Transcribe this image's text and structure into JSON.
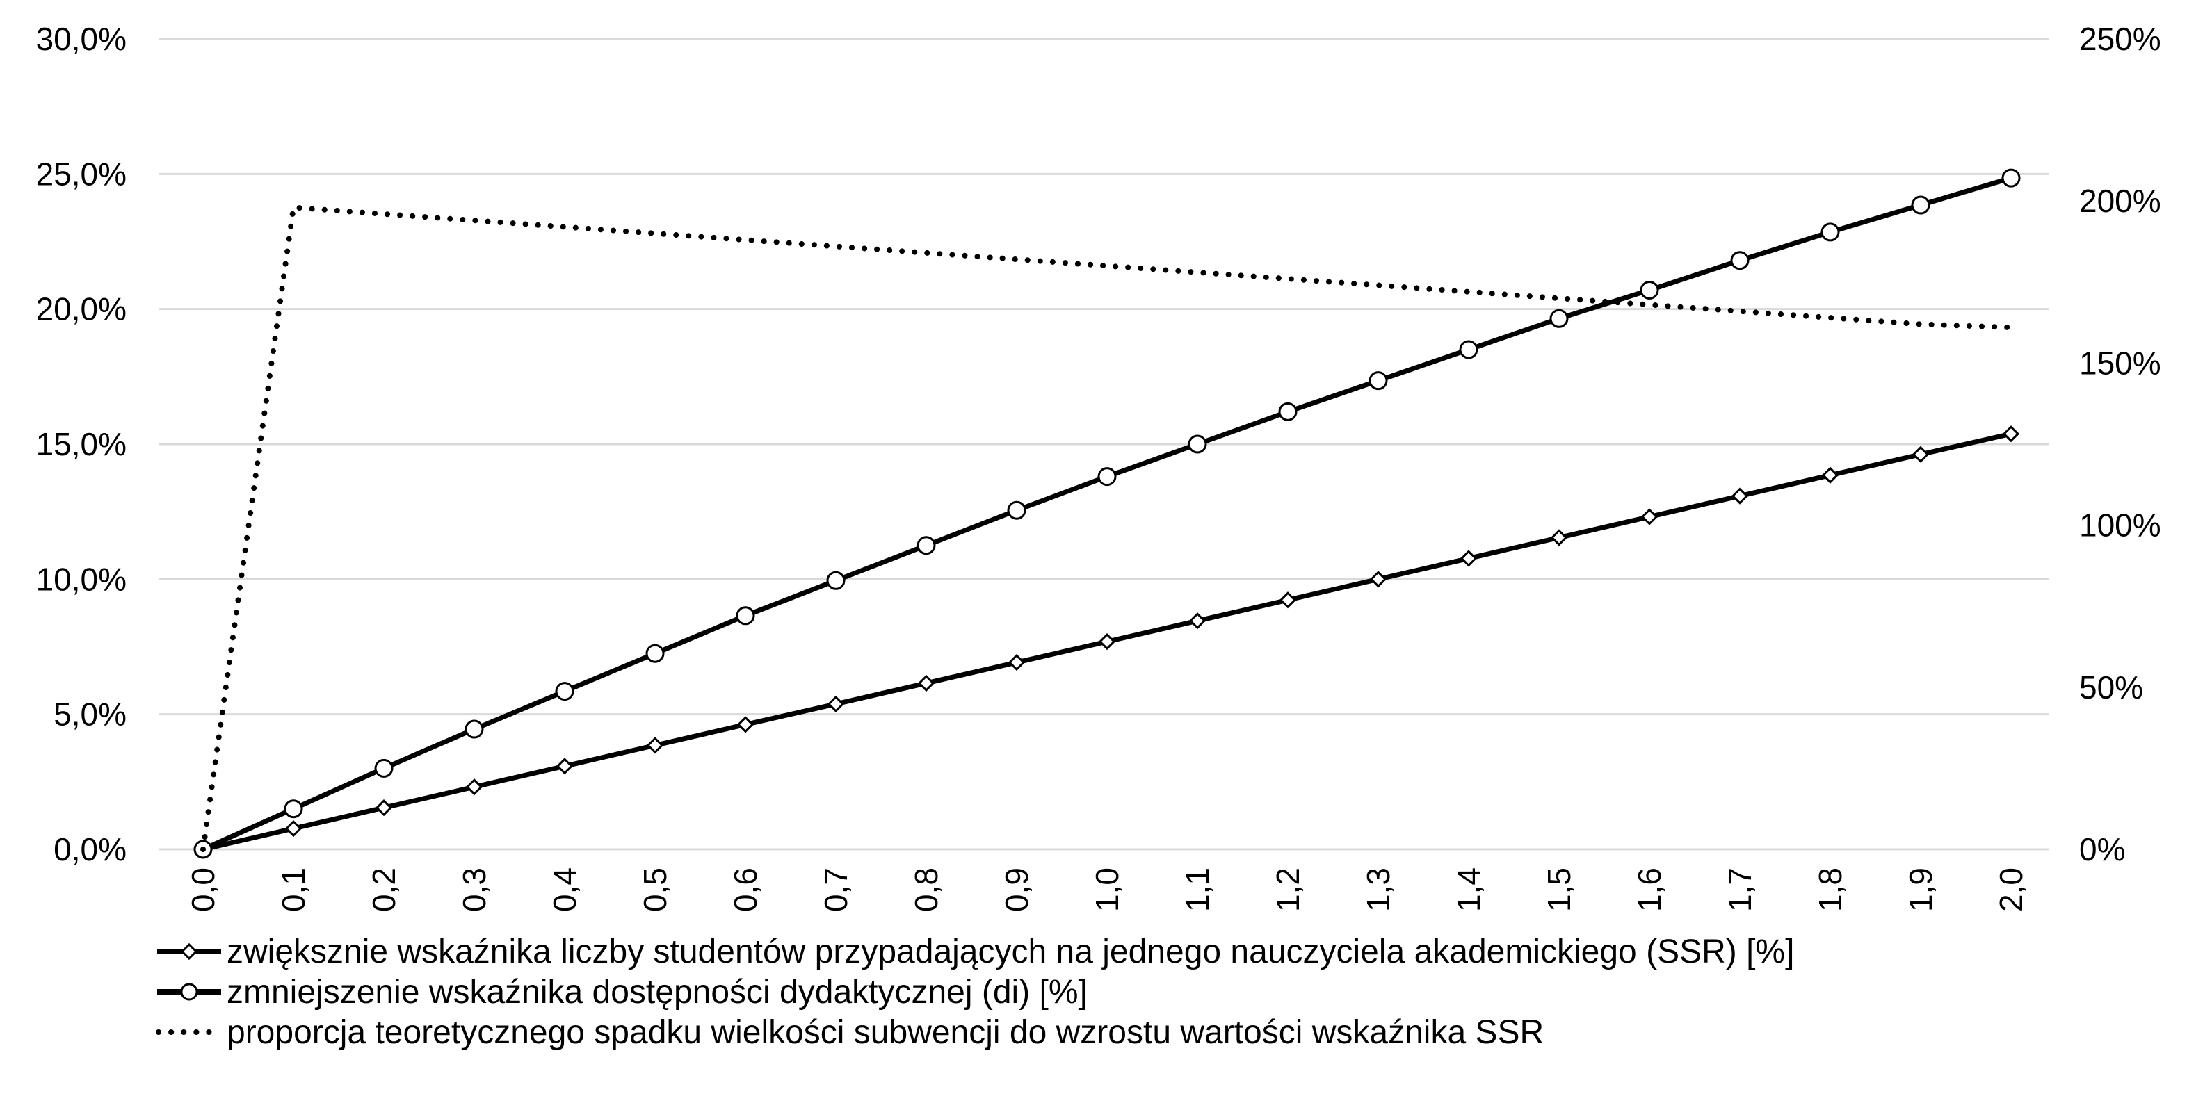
{
  "chart_data": {
    "type": "line",
    "x": [
      "0,0",
      "0,1",
      "0,2",
      "0,3",
      "0,4",
      "0,5",
      "0,6",
      "0,7",
      "0,8",
      "0,9",
      "1,0",
      "1,1",
      "1,2",
      "1,3",
      "1,4",
      "1,5",
      "1,6",
      "1,7",
      "1,8",
      "1,9",
      "2,0"
    ],
    "y_left": {
      "ticks": [
        "0,0%",
        "5,0%",
        "10,0%",
        "15,0%",
        "20,0%",
        "25,0%",
        "30,0%"
      ],
      "ylim": [
        0,
        30
      ]
    },
    "y_right": {
      "ticks": [
        "0%",
        "50%",
        "100%",
        "150%",
        "200%",
        "250%"
      ],
      "ylim": [
        0,
        250
      ]
    },
    "grid": true,
    "legend_position": "bottom",
    "series": [
      {
        "name": "zwiększnie wskaźnika liczby studentów przypadających na jednego nauczyciela akademickiego (SSR) [%]",
        "axis": "left",
        "marker": "diamond",
        "line_style": "solid",
        "color": "#000000",
        "values": [
          0,
          0.77,
          1.54,
          2.31,
          3.08,
          3.85,
          4.62,
          5.38,
          6.15,
          6.92,
          7.69,
          8.46,
          9.23,
          10.0,
          10.77,
          11.54,
          12.31,
          13.08,
          13.85,
          14.62,
          15.38
        ]
      },
      {
        "name": "zmniejszenie wskaźnika dostępności dydaktycznej (di) [%]",
        "axis": "left",
        "marker": "circle",
        "line_style": "solid",
        "color": "#000000",
        "values": [
          0,
          1.5,
          3.0,
          4.45,
          5.85,
          7.25,
          8.65,
          9.95,
          11.25,
          12.55,
          13.8,
          15.0,
          16.2,
          17.35,
          18.5,
          19.65,
          20.7,
          21.8,
          22.85,
          23.85,
          24.85
        ]
      },
      {
        "name": "proporcja teoretycznego spadku wielkości subwencji do wzrostu wartości wskaźnika SSR",
        "axis": "right",
        "marker": "none",
        "line_style": "dotted",
        "color": "#000000",
        "values": [
          0,
          198,
          196,
          194,
          192,
          190,
          188,
          186,
          184,
          182,
          180,
          178,
          176,
          174,
          172,
          170,
          168,
          166,
          164,
          162,
          161
        ]
      }
    ]
  }
}
